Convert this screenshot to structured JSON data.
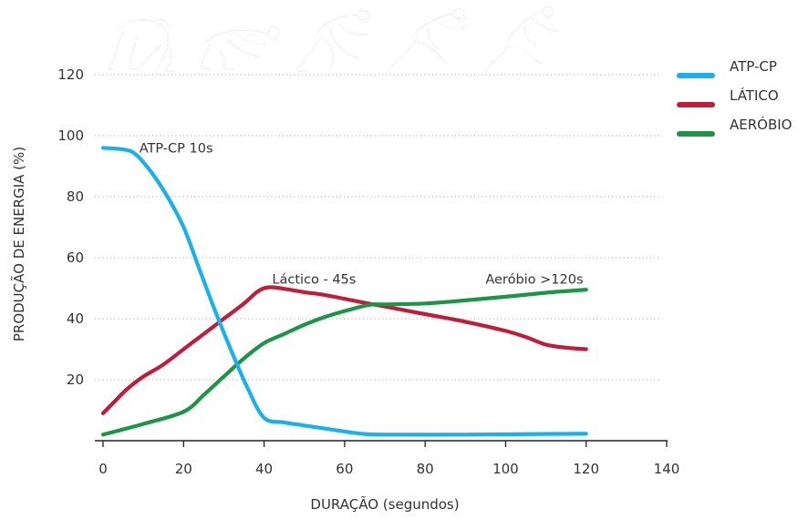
{
  "chart_data": {
    "type": "line",
    "xlabel": "DURAÇÃO (segundos)",
    "ylabel": "PRODUÇÃO DE ENERGIA (%)",
    "xlim": [
      0,
      140
    ],
    "ylim": [
      0,
      120
    ],
    "x_ticks": [
      0,
      20,
      40,
      60,
      80,
      100,
      120,
      140
    ],
    "y_ticks": [
      20,
      40,
      60,
      80,
      100,
      120
    ],
    "grid": "horizontal dotted",
    "legend_position": "right",
    "series": [
      {
        "name": "ATP-CP",
        "color": "#1bb1e7",
        "points": [
          [
            0,
            96
          ],
          [
            5,
            95.5
          ],
          [
            8,
            94
          ],
          [
            12,
            88
          ],
          [
            16,
            80
          ],
          [
            20,
            70
          ],
          [
            24,
            56
          ],
          [
            28,
            42
          ],
          [
            32,
            29
          ],
          [
            36,
            17
          ],
          [
            40,
            7.5
          ],
          [
            45,
            6
          ],
          [
            50,
            5
          ],
          [
            55,
            4
          ],
          [
            60,
            3
          ],
          [
            65,
            2.2
          ],
          [
            70,
            2
          ],
          [
            90,
            2
          ],
          [
            100,
            2.1
          ],
          [
            120,
            2.3
          ]
        ]
      },
      {
        "name": "LÁTICO",
        "color": "#be1e3c",
        "points": [
          [
            0,
            9
          ],
          [
            3,
            13
          ],
          [
            6,
            17
          ],
          [
            10,
            21
          ],
          [
            15,
            25
          ],
          [
            20,
            30
          ],
          [
            25,
            35
          ],
          [
            30,
            40
          ],
          [
            35,
            45
          ],
          [
            38,
            48.5
          ],
          [
            40,
            50
          ],
          [
            42,
            50.3
          ],
          [
            45,
            49.8
          ],
          [
            50,
            48.7
          ],
          [
            55,
            47.8
          ],
          [
            60,
            46.5
          ],
          [
            65,
            45.2
          ],
          [
            70,
            44
          ],
          [
            80,
            41.5
          ],
          [
            90,
            39
          ],
          [
            100,
            36
          ],
          [
            105,
            34
          ],
          [
            110,
            31.5
          ],
          [
            115,
            30.5
          ],
          [
            120,
            30
          ]
        ]
      },
      {
        "name": "AERÓBIO",
        "color": "#1d9448",
        "points": [
          [
            0,
            2
          ],
          [
            10,
            5.5
          ],
          [
            20,
            9.5
          ],
          [
            25,
            15
          ],
          [
            30,
            21
          ],
          [
            35,
            27
          ],
          [
            40,
            32
          ],
          [
            45,
            35
          ],
          [
            50,
            38
          ],
          [
            55,
            40.5
          ],
          [
            60,
            42.5
          ],
          [
            66,
            44.5
          ],
          [
            70,
            44.7
          ],
          [
            80,
            45
          ],
          [
            90,
            46
          ],
          [
            100,
            47.2
          ],
          [
            110,
            48.5
          ],
          [
            120,
            49.5
          ]
        ]
      }
    ],
    "annotations": [
      {
        "text": "ATP-CP 10s",
        "x": 9,
        "y": 96
      },
      {
        "text": "Láctico - 45s",
        "x": 42,
        "y": 53
      },
      {
        "text": "Aeróbio >120s",
        "x": 95,
        "y": 53
      }
    ]
  },
  "icons": [
    "sprinter-set-position-icon",
    "sprinter-drive-phase-icon",
    "sprinter-acceleration-icon",
    "sprinter-running-icon",
    "sprinter-upright-running-icon"
  ]
}
